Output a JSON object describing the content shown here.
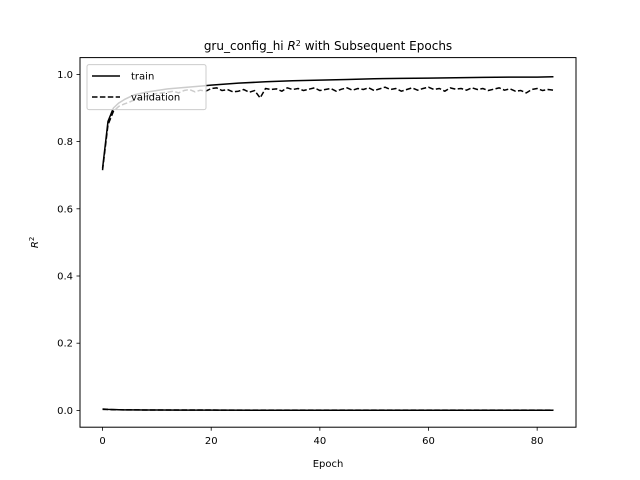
{
  "chart_data": {
    "type": "line",
    "title": "gru_config_hi R² with Subsequent Epochs",
    "title_parts": {
      "prefix": "gru_config_hi ",
      "var": "R",
      "sup": "2",
      "suffix": " with Subsequent Epochs"
    },
    "xlabel": "Epoch",
    "ylabel": {
      "var": "R",
      "sup": "2"
    },
    "xlim": [
      -4.15,
      87.15
    ],
    "ylim": [
      -0.05,
      1.05
    ],
    "x_ticks": [
      0,
      20,
      40,
      60,
      80
    ],
    "x_tick_labels": [
      "0",
      "20",
      "40",
      "60",
      "80"
    ],
    "y_ticks": [
      0.0,
      0.2,
      0.4,
      0.6,
      0.8,
      1.0
    ],
    "y_tick_labels": [
      "0.0",
      "0.2",
      "0.4",
      "0.6",
      "0.8",
      "1.0"
    ],
    "grid": false,
    "legend_position": "upper-left",
    "series": [
      {
        "name": "train",
        "style": "solid",
        "color": "#000000",
        "x": [
          0,
          1,
          2,
          3,
          4,
          5,
          6,
          8,
          10,
          12,
          15,
          18,
          20,
          25,
          30,
          35,
          40,
          45,
          50,
          55,
          60,
          65,
          70,
          75,
          80,
          83
        ],
        "y": [
          0.72,
          0.86,
          0.9,
          0.915,
          0.925,
          0.933,
          0.94,
          0.947,
          0.952,
          0.957,
          0.961,
          0.965,
          0.968,
          0.974,
          0.978,
          0.981,
          0.983,
          0.985,
          0.987,
          0.988,
          0.989,
          0.99,
          0.991,
          0.992,
          0.992,
          0.993
        ]
      },
      {
        "name": "validation",
        "style": "dashed",
        "color": "#000000",
        "x": [
          0,
          1,
          2,
          3,
          4,
          5,
          6,
          7,
          8,
          9,
          10,
          11,
          12,
          13,
          14,
          15,
          16,
          17,
          18,
          19,
          20,
          21,
          22,
          23,
          24,
          25,
          26,
          27,
          28,
          29,
          30,
          31,
          32,
          33,
          34,
          35,
          36,
          37,
          38,
          39,
          40,
          41,
          42,
          43,
          44,
          45,
          46,
          47,
          48,
          49,
          50,
          51,
          52,
          53,
          54,
          55,
          56,
          57,
          58,
          59,
          60,
          61,
          62,
          63,
          64,
          65,
          66,
          67,
          68,
          69,
          70,
          71,
          72,
          73,
          74,
          75,
          76,
          77,
          78,
          79,
          80,
          81,
          82,
          83
        ],
        "y": [
          0.715,
          0.85,
          0.89,
          0.905,
          0.912,
          0.918,
          0.925,
          0.93,
          0.935,
          0.94,
          0.943,
          0.945,
          0.947,
          0.95,
          0.945,
          0.952,
          0.955,
          0.948,
          0.953,
          0.95,
          0.958,
          0.96,
          0.952,
          0.955,
          0.948,
          0.95,
          0.955,
          0.947,
          0.952,
          0.93,
          0.958,
          0.955,
          0.957,
          0.95,
          0.96,
          0.955,
          0.958,
          0.952,
          0.956,
          0.96,
          0.952,
          0.955,
          0.958,
          0.95,
          0.956,
          0.96,
          0.953,
          0.958,
          0.955,
          0.96,
          0.952,
          0.957,
          0.962,
          0.955,
          0.958,
          0.95,
          0.955,
          0.96,
          0.953,
          0.958,
          0.962,
          0.955,
          0.958,
          0.95,
          0.96,
          0.956,
          0.958,
          0.953,
          0.96,
          0.955,
          0.958,
          0.952,
          0.956,
          0.96,
          0.953,
          0.957,
          0.95,
          0.952,
          0.945,
          0.955,
          0.958,
          0.952,
          0.955,
          0.953
        ]
      },
      {
        "name": "",
        "style": "solid",
        "color": "#000000",
        "x": [
          0,
          1,
          2,
          3,
          4,
          5,
          8,
          10,
          15,
          20,
          30,
          40,
          50,
          60,
          70,
          80,
          83
        ],
        "y": [
          0.004,
          0.003,
          0.0025,
          0.002,
          0.0017,
          0.0015,
          0.0012,
          0.001,
          0.0008,
          0.0007,
          0.0006,
          0.0005,
          0.0005,
          0.0004,
          0.0004,
          0.0004,
          0.0004
        ]
      },
      {
        "name": "",
        "style": "dashed",
        "color": "#000000",
        "x": [
          0,
          1,
          2,
          3,
          5,
          10,
          20,
          30,
          40,
          50,
          60,
          70,
          80,
          83
        ],
        "y": [
          0.003,
          0.0025,
          0.002,
          0.0018,
          0.0015,
          0.0012,
          0.001,
          0.0009,
          0.0009,
          0.0008,
          0.0008,
          0.0008,
          0.0008,
          0.0008
        ]
      }
    ]
  }
}
